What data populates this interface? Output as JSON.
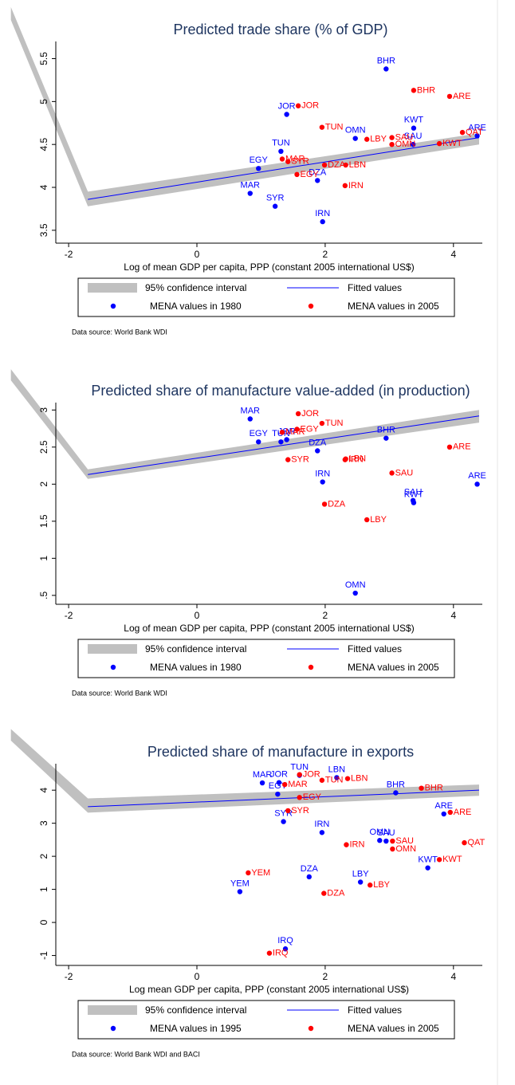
{
  "chart_data": [
    {
      "type": "scatter",
      "title": "Predicted trade share (% of GDP)",
      "x_label": "Log of mean GDP per capita, PPP (constant 2005 international US$)",
      "xlim": [
        -2.2,
        4.45
      ],
      "xticks": [
        -2,
        0,
        2,
        4
      ],
      "ylim": [
        3.35,
        5.7
      ],
      "yticks": [
        3.5,
        4,
        4.5,
        5,
        5.5
      ],
      "band": {
        "name": "95% confidence interval",
        "color": "#c0c0c0",
        "x": [
          -2.9,
          -1.7,
          4.4
        ],
        "upper": [
          6.1,
          3.95,
          4.63
        ],
        "lower": [
          5.95,
          3.78,
          4.5
        ]
      },
      "fit": {
        "name": "Fitted values",
        "color": "#0000ff",
        "x": [
          -1.7,
          4.4
        ],
        "values": [
          3.86,
          4.58
        ]
      },
      "series": [
        {
          "name": "MENA values in 1980",
          "color": "#0000ff",
          "labels": [
            "BHR",
            "JOR",
            "KWT",
            "OMN",
            "ARE",
            "SAU",
            "TUN",
            "EGY",
            "DZA",
            "MAR",
            "SYR",
            "IRN"
          ],
          "x": [
            2.95,
            1.4,
            3.38,
            2.47,
            4.37,
            3.37,
            1.31,
            0.96,
            1.88,
            0.83,
            1.22,
            1.96
          ],
          "values": [
            5.38,
            4.85,
            4.69,
            4.57,
            4.6,
            4.5,
            4.42,
            4.22,
            4.08,
            3.93,
            3.78,
            3.6
          ]
        },
        {
          "name": "MENA values in 2005",
          "color": "#ff0000",
          "labels": [
            "BHR",
            "ARE",
            "JOR",
            "TUN",
            "QAT",
            "LBY",
            "SAU",
            "OMN",
            "KWT",
            "MAR",
            "SYR",
            "DZA",
            "LBN",
            "EGY",
            "IRN"
          ],
          "x": [
            3.38,
            3.94,
            1.58,
            1.95,
            4.14,
            2.65,
            3.04,
            3.04,
            3.78,
            1.33,
            1.42,
            1.99,
            2.32,
            1.56,
            2.31
          ],
          "values": [
            5.13,
            5.06,
            4.95,
            4.7,
            4.64,
            4.56,
            4.58,
            4.5,
            4.51,
            4.33,
            4.3,
            4.26,
            4.26,
            4.15,
            4.02
          ]
        }
      ],
      "source": "Data source: World Bank WDI"
    },
    {
      "type": "scatter",
      "title": "Predicted share of manufacture value-added (in production)",
      "x_label": "Log of mean GDP per capita, PPP (constant 2005 international US$)",
      "xlim": [
        -2.2,
        4.45
      ],
      "xticks": [
        -2,
        0,
        2,
        4
      ],
      "ylim": [
        0.38,
        3.1
      ],
      "yticks": [
        {
          "value": 0.5,
          "label": ".5"
        },
        1,
        1.5,
        2,
        2.5,
        3
      ],
      "band": {
        "name": "95% confidence interval",
        "color": "#c0c0c0",
        "x": [
          -2.9,
          -1.7,
          4.4
        ],
        "upper": [
          3.55,
          2.2,
          3.0
        ],
        "lower": [
          3.4,
          2.07,
          2.83
        ]
      },
      "fit": {
        "name": "Fitted values",
        "color": "#0000ff",
        "x": [
          -1.7,
          4.4
        ],
        "values": [
          2.13,
          2.92
        ]
      },
      "series": [
        {
          "name": "MENA values in 1980",
          "color": "#0000ff",
          "labels": [
            "MAR",
            "EGY",
            "TUN",
            "JOR",
            "DZA",
            "BHR",
            "IRN",
            "ARE",
            "SAU",
            "KWT",
            "OMN"
          ],
          "x": [
            0.83,
            0.96,
            1.31,
            1.4,
            1.88,
            2.95,
            1.96,
            4.37,
            3.37,
            3.38,
            2.47
          ],
          "values": [
            2.88,
            2.57,
            2.57,
            2.6,
            2.45,
            2.62,
            2.03,
            2.0,
            1.78,
            1.75,
            0.53
          ]
        },
        {
          "name": "MENA values in 2005",
          "color": "#ff0000",
          "labels": [
            "JOR",
            "TUN",
            "EGY",
            "MAR",
            "SYR",
            "IRN",
            "LBN",
            "SAU",
            "ARE",
            "DZA",
            "LBY"
          ],
          "x": [
            1.58,
            1.95,
            1.56,
            1.33,
            1.42,
            2.31,
            2.32,
            3.04,
            3.94,
            1.99,
            2.65
          ],
          "values": [
            2.95,
            2.82,
            2.74,
            2.7,
            2.33,
            2.33,
            2.34,
            2.15,
            2.5,
            1.73,
            1.52
          ]
        }
      ],
      "source": "Data source: World Bank WDI"
    },
    {
      "type": "scatter",
      "title": "Predicted share of manufacture in exports",
      "x_label": "Log mean GDP per capita, PPP (constant 2005 international US$)",
      "xlim": [
        -2.2,
        4.45
      ],
      "xticks": [
        -2,
        0,
        2,
        4
      ],
      "ylim": [
        -1.3,
        4.8
      ],
      "yticks": [
        -1,
        0,
        1,
        2,
        3,
        4
      ],
      "band": {
        "name": "95% confidence interval",
        "color": "#c0c0c0",
        "x": [
          -2.9,
          -1.7,
          4.4
        ],
        "upper": [
          5.85,
          3.75,
          4.17
        ],
        "lower": [
          5.5,
          3.32,
          3.83
        ]
      },
      "fit": {
        "name": "Fitted values",
        "color": "#0000ff",
        "x": [
          -1.7,
          4.4
        ],
        "values": [
          3.5,
          4.0
        ]
      },
      "series": [
        {
          "name": "MENA values in 1995",
          "color": "#0000ff",
          "labels": [
            "MAR",
            "JOR",
            "EGY",
            "TUN",
            "LBN",
            "BHR",
            "ARE",
            "SYR",
            "IRN",
            "OMN",
            "SAU",
            "KWT",
            "DZA",
            "LBY",
            "YEM",
            "IRQ"
          ],
          "x": [
            1.02,
            1.28,
            1.26,
            1.6,
            2.18,
            3.1,
            3.85,
            1.35,
            1.95,
            2.85,
            2.95,
            3.6,
            1.75,
            2.55,
            0.67,
            1.38
          ],
          "values": [
            4.22,
            4.23,
            3.88,
            4.45,
            4.38,
            3.92,
            3.28,
            3.05,
            2.72,
            2.48,
            2.46,
            1.65,
            1.38,
            1.22,
            0.93,
            -0.8
          ]
        },
        {
          "name": "MENA values in 2005",
          "color": "#ff0000",
          "labels": [
            "JOR",
            "LBN",
            "TUN",
            "MAR",
            "EGY",
            "BHR",
            "ARE",
            "SYR",
            "SAU",
            "OMN",
            "IRN",
            "QAT",
            "KWT",
            "YEM",
            "LBY",
            "DZA",
            "IRQ"
          ],
          "x": [
            1.6,
            2.35,
            1.95,
            1.37,
            1.6,
            3.5,
            3.95,
            1.42,
            3.05,
            3.05,
            2.33,
            4.17,
            3.78,
            0.8,
            2.7,
            1.98,
            1.13
          ],
          "values": [
            4.47,
            4.35,
            4.3,
            4.17,
            3.78,
            4.06,
            3.33,
            3.38,
            2.46,
            2.22,
            2.35,
            2.41,
            1.9,
            1.5,
            1.13,
            0.88,
            -0.93
          ]
        }
      ],
      "source": "Data source: World Bank WDI and BACI"
    }
  ]
}
